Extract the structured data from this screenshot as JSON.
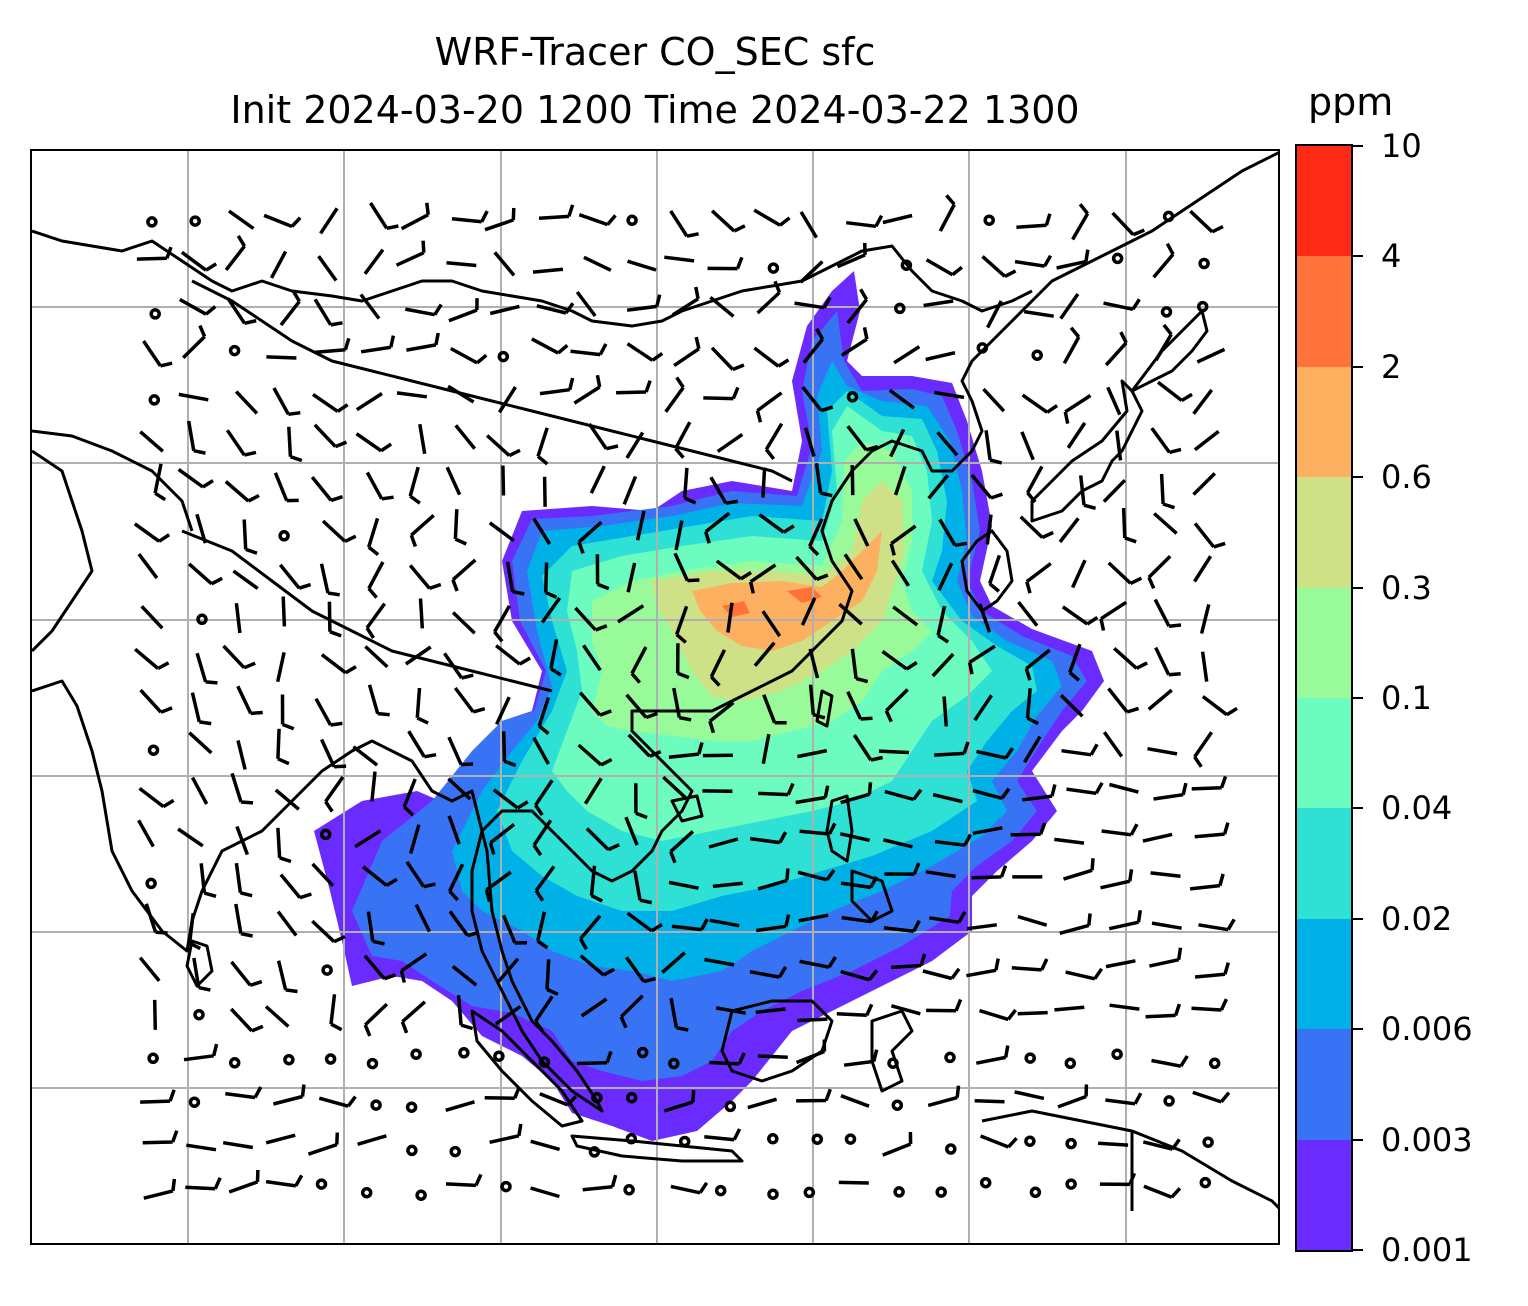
{
  "title": {
    "line1": "WRF-Tracer CO_SEC sfc",
    "line2": "Init 2024-03-20 1200 Time 2024-03-22 1300"
  },
  "colorbar": {
    "unit": "ppm",
    "levels": [
      "0.001",
      "0.003",
      "0.006",
      "0.02",
      "0.04",
      "0.1",
      "0.3",
      "0.6",
      "2",
      "4",
      "10"
    ],
    "colors": [
      "#6a2bff",
      "#3872f5",
      "#00b1e8",
      "#2fe0d4",
      "#6cfcbf",
      "#98fa98",
      "#cfe186",
      "#fdb060",
      "#ff723a",
      "#ff2a16"
    ]
  },
  "map": {
    "grid": "on",
    "features": [
      "coastlines",
      "country borders",
      "wind barbs",
      "CO_SEC tracer concentration"
    ]
  }
}
